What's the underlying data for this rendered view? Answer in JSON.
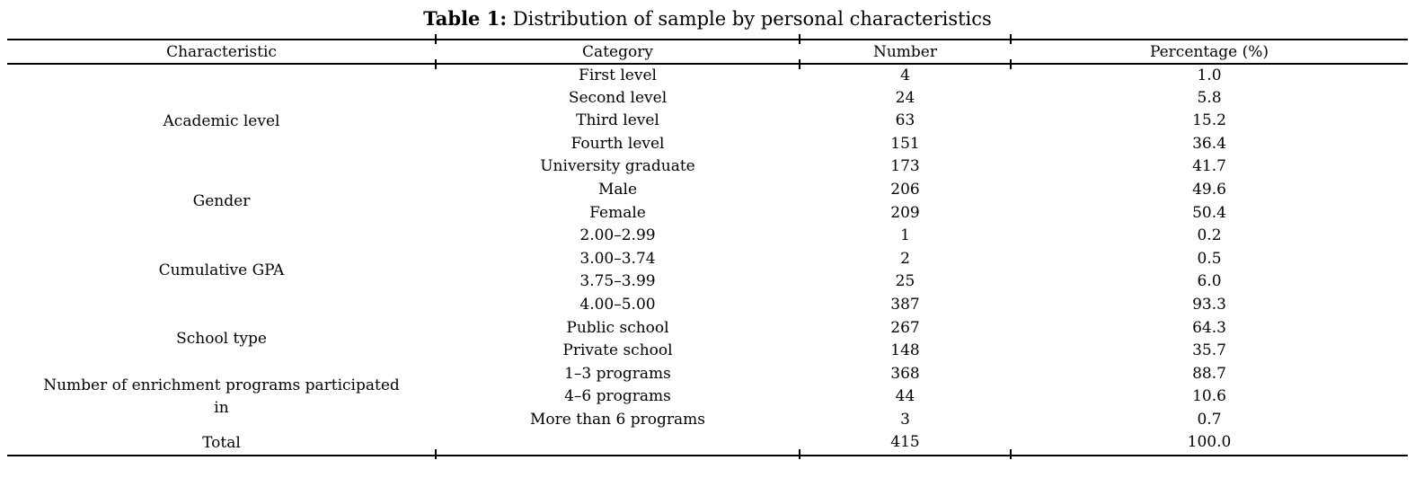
{
  "title": {
    "label": "Table 1:",
    "text": "Distribution of sample by personal characteristics"
  },
  "table": {
    "columns": [
      "Characteristic",
      "Category",
      "Number",
      "Percentage (%)"
    ],
    "groups": [
      {
        "characteristic": "Academic level",
        "rows": [
          [
            "First level",
            "4",
            "1.0"
          ],
          [
            "Second level",
            "24",
            "5.8"
          ],
          [
            "Third level",
            "63",
            "15.2"
          ],
          [
            "Fourth level",
            "151",
            "36.4"
          ],
          [
            "University graduate",
            "173",
            "41.7"
          ]
        ]
      },
      {
        "characteristic": "Gender",
        "rows": [
          [
            "Male",
            "206",
            "49.6"
          ],
          [
            "Female",
            "209",
            "50.4"
          ]
        ]
      },
      {
        "characteristic": "Cumulative GPA",
        "rows": [
          [
            "2.00–2.99",
            "1",
            "0.2"
          ],
          [
            "3.00–3.74",
            "2",
            "0.5"
          ],
          [
            "3.75–3.99",
            "25",
            "6.0"
          ],
          [
            "4.00–5.00",
            "387",
            "93.3"
          ]
        ]
      },
      {
        "characteristic": "School type",
        "rows": [
          [
            "Public school",
            "267",
            "64.3"
          ],
          [
            "Private school",
            "148",
            "35.7"
          ]
        ]
      },
      {
        "characteristic": "Number of enrichment programs participated\nin",
        "rows": [
          [
            "1–3 programs",
            "368",
            "88.7"
          ],
          [
            "4–6 programs",
            "44",
            "10.6"
          ],
          [
            "More than 6 programs",
            "3",
            "0.7"
          ]
        ]
      },
      {
        "characteristic": "Total",
        "rows": [
          [
            "",
            "415",
            "100.0"
          ]
        ]
      }
    ]
  }
}
